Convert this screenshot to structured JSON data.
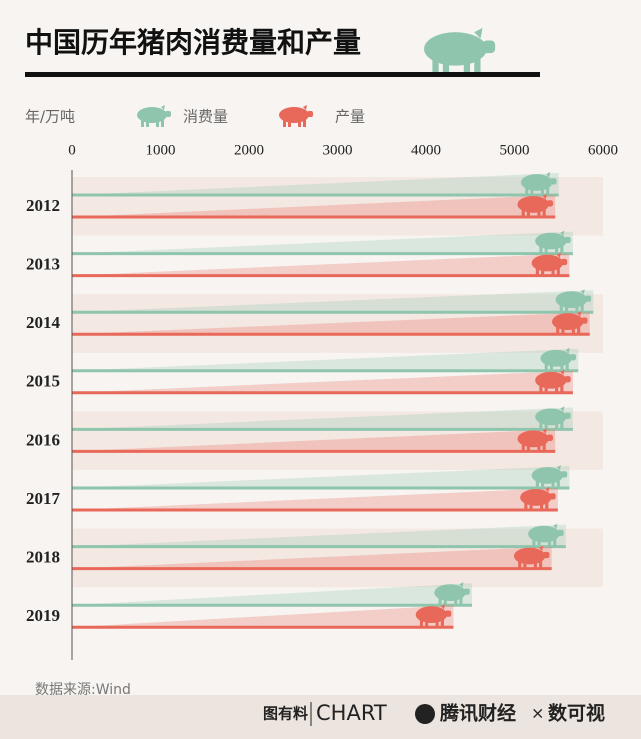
{
  "chart_data": {
    "type": "bar",
    "title": "中国历年猪肉消费量和产量",
    "unit_label": "年/万吨",
    "categories": [
      "2012",
      "2013",
      "2014",
      "2015",
      "2016",
      "2017",
      "2018",
      "2019"
    ],
    "series": [
      {
        "name": "消费量",
        "color": "#8fc5ad",
        "values": [
          5500,
          5660,
          5890,
          5720,
          5660,
          5620,
          5580,
          4520
        ]
      },
      {
        "name": "产量",
        "color": "#e8685a",
        "values": [
          5460,
          5620,
          5850,
          5660,
          5460,
          5490,
          5420,
          4310
        ]
      }
    ],
    "xlim": [
      0,
      6000
    ],
    "xticks": [
      0,
      1000,
      2000,
      3000,
      4000,
      5000,
      6000
    ],
    "source": "数据来源:Wind",
    "branding": [
      "图有料",
      "CHART",
      "腾讯财经",
      "×",
      "数可视"
    ]
  }
}
